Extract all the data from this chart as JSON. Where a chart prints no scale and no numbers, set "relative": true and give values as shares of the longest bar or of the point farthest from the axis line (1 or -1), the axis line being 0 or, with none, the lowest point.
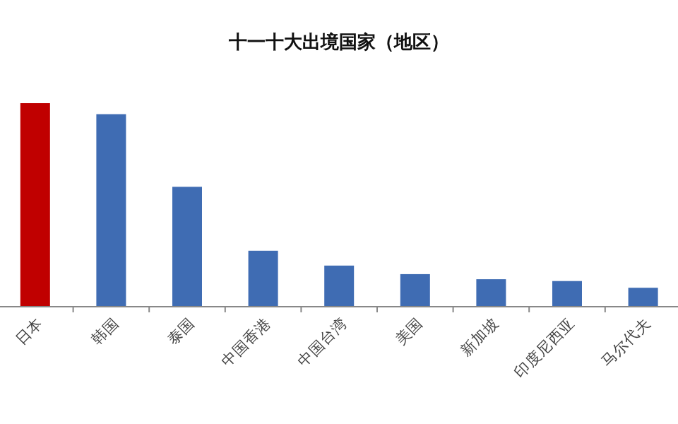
{
  "chart_data": {
    "type": "bar",
    "title": "十一十大出境国家（地区）",
    "categories": [
      "日本",
      "韩国",
      "泰国",
      "中国香港",
      "中国台湾",
      "美国",
      "新加坡",
      "印度尼西亚",
      "马尔代夫"
    ],
    "values": [
      1,
      0.946,
      0.589,
      0.275,
      0.202,
      0.16,
      0.135,
      0.126,
      0.093
    ],
    "colors": [
      "#c00000",
      "#3f6cb3",
      "#3f6cb3",
      "#3f6cb3",
      "#3f6cb3",
      "#3f6cb3",
      "#3f6cb3",
      "#3f6cb3",
      "#3f6cb3"
    ],
    "relative": true
  }
}
